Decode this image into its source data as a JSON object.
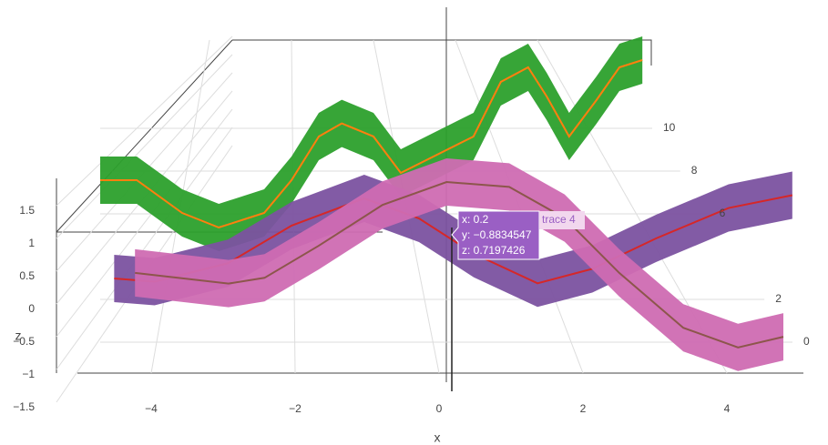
{
  "chart_data": {
    "type": "ribbon3d",
    "x_label": "x",
    "z_label": "z",
    "xticks": [
      {
        "value": -4,
        "label": "−4"
      },
      {
        "value": -2,
        "label": "−2"
      },
      0,
      2,
      4
    ],
    "yticks": [
      0,
      2,
      6,
      8,
      10
    ],
    "zticks": [
      {
        "value": -1.5,
        "label": "−1.5"
      },
      {
        "value": -1,
        "label": "−1"
      },
      {
        "value": -0.5,
        "label": "−0.5"
      },
      0,
      0.5,
      1,
      1.5
    ],
    "series": [
      {
        "y": 10,
        "color": "#2ca02c",
        "line_color": "#ff7f0e",
        "x": [
          -5,
          -4.33,
          -3.5,
          -2.83,
          -2,
          -1.5,
          -1,
          -0.58,
          0,
          0.5,
          1.83,
          2.33,
          2.83,
          3.17,
          3.58,
          4.08,
          4.5,
          4.92
        ],
        "values": [
          -0.6,
          -0.6,
          -1.05,
          -1.25,
          -1.05,
          -0.6,
          0,
          0.18,
          0,
          -0.5,
          0,
          0.75,
          0.95,
          0.55,
          0,
          0.5,
          0.95,
          1.05
        ]
      },
      {
        "y": 2,
        "color": "#7b52a0",
        "line_color": "#d62728",
        "x": [
          -4.53,
          -3.94,
          -2.87,
          -1.94,
          -0.88,
          -0.08,
          0.72,
          1.65,
          2.45,
          3.38,
          4.44,
          5.37
        ],
        "values": [
          -0.5,
          -0.54,
          -0.31,
          0.16,
          0.5,
          0.25,
          -0.19,
          -0.56,
          -0.38,
          0,
          0.38,
          0.54
        ]
      },
      {
        "y": 0,
        "color": "#cf6cb2",
        "line_color": "#8c564b",
        "x": [
          -4.2,
          -2.9,
          -2.4,
          -1.65,
          -0.76,
          0.13,
          1,
          1.77,
          2.53,
          3.42,
          4.18,
          4.81
        ],
        "values": [
          -0.11,
          -0.24,
          -0.17,
          0.22,
          0.72,
          1,
          0.94,
          0.56,
          -0.11,
          -0.78,
          -1.02,
          -0.89
        ]
      }
    ],
    "hover": {
      "x": "x: 0.2",
      "y": "y: −0.8834547",
      "z": "z: 0.7197426",
      "trace": "trace 4"
    }
  }
}
